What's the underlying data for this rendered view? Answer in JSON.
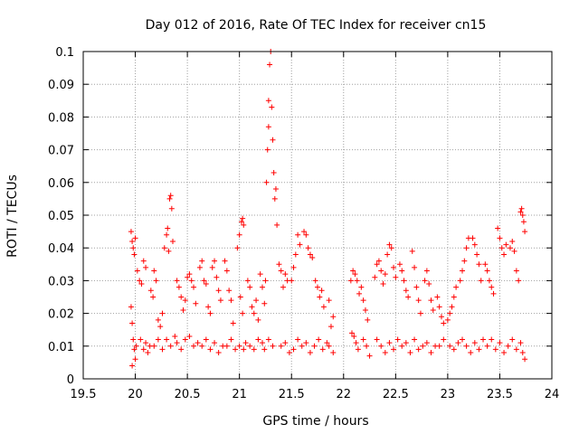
{
  "chart_data": {
    "type": "scatter",
    "title": "Day 012 of 2016, Rate Of TEC Index for receiver cn15",
    "xlabel": "GPS time / hours",
    "ylabel": "ROTI / TECUs",
    "xlim": [
      19.5,
      24
    ],
    "ylim": [
      0,
      0.1
    ],
    "xticks": [
      "19.5",
      "20",
      "20.5",
      "21",
      "21.5",
      "22",
      "22.5",
      "23",
      "23.5",
      "24"
    ],
    "yticks": [
      "0",
      "0.01",
      "0.02",
      "0.03",
      "0.04",
      "0.05",
      "0.06",
      "0.07",
      "0.08",
      "0.09",
      "0.1"
    ],
    "grid": true,
    "marker": "+",
    "color": "#ff0000",
    "series": [
      {
        "name": "ROTI",
        "points": [
          [
            19.96,
            0.045
          ],
          [
            19.97,
            0.042
          ],
          [
            19.98,
            0.04
          ],
          [
            19.99,
            0.038
          ],
          [
            20.0,
            0.043
          ],
          [
            19.96,
            0.022
          ],
          [
            19.97,
            0.017
          ],
          [
            19.98,
            0.012
          ],
          [
            19.99,
            0.009
          ],
          [
            20.0,
            0.006
          ],
          [
            19.97,
            0.004
          ],
          [
            20.01,
            0.01
          ],
          [
            20.02,
            0.033
          ],
          [
            20.04,
            0.03
          ],
          [
            20.06,
            0.029
          ],
          [
            20.08,
            0.036
          ],
          [
            20.1,
            0.034
          ],
          [
            20.05,
            0.012
          ],
          [
            20.08,
            0.009
          ],
          [
            20.1,
            0.011
          ],
          [
            20.12,
            0.008
          ],
          [
            20.14,
            0.01
          ],
          [
            20.15,
            0.027
          ],
          [
            20.17,
            0.025
          ],
          [
            20.18,
            0.033
          ],
          [
            20.2,
            0.03
          ],
          [
            20.22,
            0.018
          ],
          [
            20.24,
            0.016
          ],
          [
            20.26,
            0.02
          ],
          [
            20.18,
            0.01
          ],
          [
            20.22,
            0.012
          ],
          [
            20.26,
            0.009
          ],
          [
            20.28,
            0.04
          ],
          [
            20.3,
            0.044
          ],
          [
            20.31,
            0.046
          ],
          [
            20.32,
            0.039
          ],
          [
            20.33,
            0.055
          ],
          [
            20.34,
            0.056
          ],
          [
            20.35,
            0.052
          ],
          [
            20.36,
            0.042
          ],
          [
            20.3,
            0.012
          ],
          [
            20.34,
            0.01
          ],
          [
            20.38,
            0.013
          ],
          [
            20.4,
            0.03
          ],
          [
            20.42,
            0.028
          ],
          [
            20.44,
            0.025
          ],
          [
            20.46,
            0.021
          ],
          [
            20.48,
            0.024
          ],
          [
            20.4,
            0.011
          ],
          [
            20.44,
            0.009
          ],
          [
            20.48,
            0.012
          ],
          [
            20.5,
            0.031
          ],
          [
            20.52,
            0.032
          ],
          [
            20.54,
            0.03
          ],
          [
            20.56,
            0.028
          ],
          [
            20.58,
            0.023
          ],
          [
            20.52,
            0.013
          ],
          [
            20.56,
            0.01
          ],
          [
            20.6,
            0.011
          ],
          [
            20.62,
            0.034
          ],
          [
            20.64,
            0.036
          ],
          [
            20.66,
            0.03
          ],
          [
            20.68,
            0.029
          ],
          [
            20.7,
            0.022
          ],
          [
            20.72,
            0.02
          ],
          [
            20.64,
            0.01
          ],
          [
            20.68,
            0.012
          ],
          [
            20.72,
            0.009
          ],
          [
            20.74,
            0.034
          ],
          [
            20.76,
            0.036
          ],
          [
            20.78,
            0.031
          ],
          [
            20.8,
            0.027
          ],
          [
            20.82,
            0.024
          ],
          [
            20.76,
            0.011
          ],
          [
            20.8,
            0.008
          ],
          [
            20.84,
            0.01
          ],
          [
            20.86,
            0.036
          ],
          [
            20.88,
            0.033
          ],
          [
            20.9,
            0.027
          ],
          [
            20.92,
            0.024
          ],
          [
            20.94,
            0.017
          ],
          [
            20.88,
            0.01
          ],
          [
            20.92,
            0.012
          ],
          [
            20.96,
            0.009
          ],
          [
            20.98,
            0.04
          ],
          [
            21.0,
            0.044
          ],
          [
            21.02,
            0.048
          ],
          [
            21.03,
            0.049
          ],
          [
            21.04,
            0.047
          ],
          [
            21.01,
            0.025
          ],
          [
            21.03,
            0.02
          ],
          [
            21.0,
            0.01
          ],
          [
            21.04,
            0.009
          ],
          [
            21.06,
            0.011
          ],
          [
            21.08,
            0.03
          ],
          [
            21.1,
            0.028
          ],
          [
            21.12,
            0.022
          ],
          [
            21.14,
            0.02
          ],
          [
            21.16,
            0.024
          ],
          [
            21.18,
            0.018
          ],
          [
            21.1,
            0.01
          ],
          [
            21.14,
            0.009
          ],
          [
            21.18,
            0.012
          ],
          [
            21.2,
            0.032
          ],
          [
            21.22,
            0.028
          ],
          [
            21.24,
            0.023
          ],
          [
            21.25,
            0.03
          ],
          [
            21.22,
            0.011
          ],
          [
            21.24,
            0.009
          ],
          [
            21.26,
            0.06
          ],
          [
            21.27,
            0.07
          ],
          [
            21.28,
            0.077
          ],
          [
            21.28,
            0.085
          ],
          [
            21.29,
            0.096
          ],
          [
            21.3,
            0.1
          ],
          [
            21.31,
            0.083
          ],
          [
            21.32,
            0.073
          ],
          [
            21.33,
            0.063
          ],
          [
            21.34,
            0.055
          ],
          [
            21.35,
            0.058
          ],
          [
            21.36,
            0.047
          ],
          [
            21.28,
            0.012
          ],
          [
            21.32,
            0.01
          ],
          [
            21.38,
            0.035
          ],
          [
            21.4,
            0.033
          ],
          [
            21.42,
            0.028
          ],
          [
            21.44,
            0.032
          ],
          [
            21.46,
            0.03
          ],
          [
            21.4,
            0.01
          ],
          [
            21.44,
            0.011
          ],
          [
            21.48,
            0.008
          ],
          [
            21.5,
            0.03
          ],
          [
            21.52,
            0.034
          ],
          [
            21.54,
            0.038
          ],
          [
            21.56,
            0.044
          ],
          [
            21.58,
            0.041
          ],
          [
            21.52,
            0.009
          ],
          [
            21.56,
            0.012
          ],
          [
            21.6,
            0.01
          ],
          [
            21.62,
            0.045
          ],
          [
            21.64,
            0.044
          ],
          [
            21.66,
            0.04
          ],
          [
            21.68,
            0.038
          ],
          [
            21.7,
            0.037
          ],
          [
            21.64,
            0.011
          ],
          [
            21.68,
            0.008
          ],
          [
            21.72,
            0.01
          ],
          [
            21.73,
            0.03
          ],
          [
            21.75,
            0.028
          ],
          [
            21.77,
            0.025
          ],
          [
            21.79,
            0.027
          ],
          [
            21.81,
            0.022
          ],
          [
            21.76,
            0.012
          ],
          [
            21.8,
            0.009
          ],
          [
            21.84,
            0.011
          ],
          [
            21.86,
            0.024
          ],
          [
            21.88,
            0.016
          ],
          [
            21.9,
            0.019
          ],
          [
            21.86,
            0.01
          ],
          [
            21.9,
            0.008
          ],
          [
            22.07,
            0.03
          ],
          [
            22.09,
            0.033
          ],
          [
            22.11,
            0.032
          ],
          [
            22.13,
            0.03
          ],
          [
            22.15,
            0.026
          ],
          [
            22.08,
            0.014
          ],
          [
            22.1,
            0.013
          ],
          [
            22.12,
            0.011
          ],
          [
            22.14,
            0.009
          ],
          [
            22.17,
            0.028
          ],
          [
            22.19,
            0.024
          ],
          [
            22.21,
            0.021
          ],
          [
            22.23,
            0.018
          ],
          [
            22.19,
            0.012
          ],
          [
            22.22,
            0.01
          ],
          [
            22.25,
            0.007
          ],
          [
            22.3,
            0.031
          ],
          [
            22.32,
            0.035
          ],
          [
            22.34,
            0.036
          ],
          [
            22.36,
            0.033
          ],
          [
            22.38,
            0.029
          ],
          [
            22.4,
            0.032
          ],
          [
            22.32,
            0.012
          ],
          [
            22.36,
            0.01
          ],
          [
            22.4,
            0.008
          ],
          [
            22.42,
            0.038
          ],
          [
            22.44,
            0.041
          ],
          [
            22.46,
            0.04
          ],
          [
            22.48,
            0.034
          ],
          [
            22.5,
            0.031
          ],
          [
            22.44,
            0.011
          ],
          [
            22.48,
            0.009
          ],
          [
            22.52,
            0.012
          ],
          [
            22.54,
            0.035
          ],
          [
            22.56,
            0.033
          ],
          [
            22.58,
            0.03
          ],
          [
            22.6,
            0.027
          ],
          [
            22.62,
            0.025
          ],
          [
            22.56,
            0.01
          ],
          [
            22.6,
            0.011
          ],
          [
            22.64,
            0.008
          ],
          [
            22.66,
            0.039
          ],
          [
            22.68,
            0.034
          ],
          [
            22.7,
            0.028
          ],
          [
            22.72,
            0.024
          ],
          [
            22.74,
            0.02
          ],
          [
            22.68,
            0.012
          ],
          [
            22.72,
            0.009
          ],
          [
            22.76,
            0.01
          ],
          [
            22.78,
            0.03
          ],
          [
            22.8,
            0.033
          ],
          [
            22.82,
            0.029
          ],
          [
            22.84,
            0.024
          ],
          [
            22.86,
            0.021
          ],
          [
            22.8,
            0.011
          ],
          [
            22.84,
            0.008
          ],
          [
            22.88,
            0.01
          ],
          [
            22.9,
            0.025
          ],
          [
            22.92,
            0.022
          ],
          [
            22.94,
            0.019
          ],
          [
            22.96,
            0.017
          ],
          [
            22.92,
            0.01
          ],
          [
            22.96,
            0.012
          ],
          [
            23.0,
            0.018
          ],
          [
            23.02,
            0.02
          ],
          [
            23.04,
            0.022
          ],
          [
            23.06,
            0.025
          ],
          [
            23.08,
            0.028
          ],
          [
            23.02,
            0.01
          ],
          [
            23.06,
            0.009
          ],
          [
            23.1,
            0.011
          ],
          [
            23.12,
            0.03
          ],
          [
            23.14,
            0.033
          ],
          [
            23.16,
            0.036
          ],
          [
            23.18,
            0.04
          ],
          [
            23.2,
            0.043
          ],
          [
            23.14,
            0.012
          ],
          [
            23.18,
            0.01
          ],
          [
            23.22,
            0.008
          ],
          [
            23.24,
            0.043
          ],
          [
            23.26,
            0.041
          ],
          [
            23.28,
            0.038
          ],
          [
            23.3,
            0.035
          ],
          [
            23.32,
            0.03
          ],
          [
            23.26,
            0.011
          ],
          [
            23.3,
            0.009
          ],
          [
            23.34,
            0.012
          ],
          [
            23.36,
            0.035
          ],
          [
            23.38,
            0.033
          ],
          [
            23.4,
            0.03
          ],
          [
            23.42,
            0.028
          ],
          [
            23.44,
            0.026
          ],
          [
            23.38,
            0.01
          ],
          [
            23.42,
            0.012
          ],
          [
            23.46,
            0.009
          ],
          [
            23.48,
            0.046
          ],
          [
            23.5,
            0.043
          ],
          [
            23.52,
            0.04
          ],
          [
            23.54,
            0.038
          ],
          [
            23.56,
            0.041
          ],
          [
            23.5,
            0.011
          ],
          [
            23.54,
            0.008
          ],
          [
            23.58,
            0.01
          ],
          [
            23.6,
            0.04
          ],
          [
            23.62,
            0.042
          ],
          [
            23.64,
            0.039
          ],
          [
            23.66,
            0.033
          ],
          [
            23.68,
            0.03
          ],
          [
            23.62,
            0.012
          ],
          [
            23.66,
            0.009
          ],
          [
            23.7,
            0.011
          ],
          [
            23.7,
            0.051
          ],
          [
            23.71,
            0.052
          ],
          [
            23.72,
            0.05
          ],
          [
            23.73,
            0.048
          ],
          [
            23.74,
            0.045
          ],
          [
            23.72,
            0.008
          ],
          [
            23.74,
            0.006
          ]
        ]
      }
    ]
  }
}
